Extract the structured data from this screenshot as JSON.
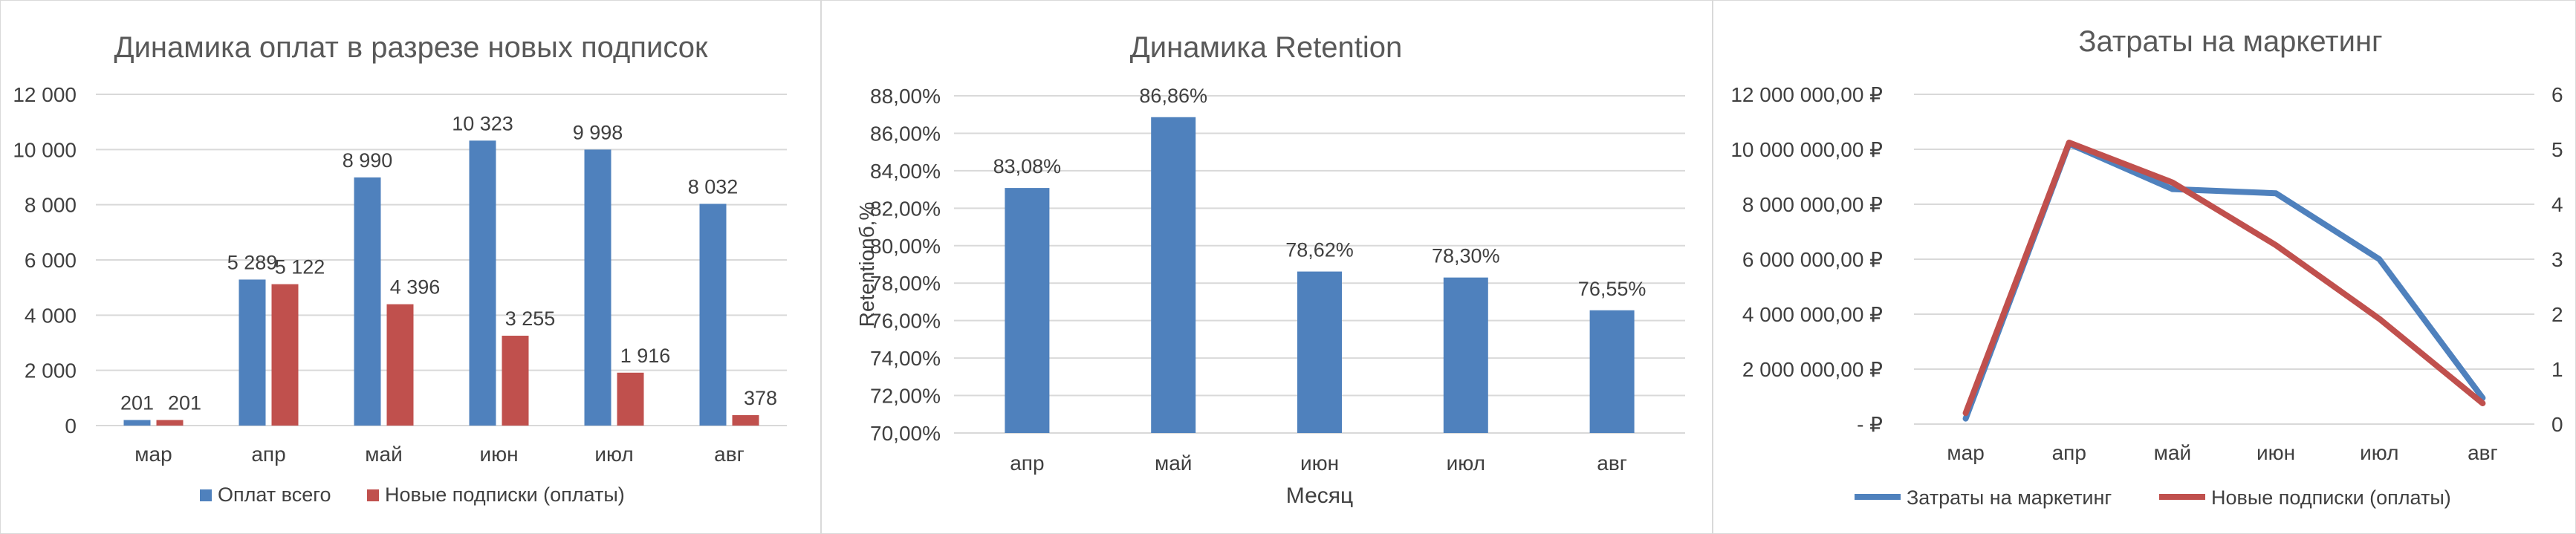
{
  "colors": {
    "blue": "#4f81bd",
    "red": "#c0504d",
    "grid": "#d9d9d9",
    "text": "#404040",
    "title": "#595959"
  },
  "charts": [
    {
      "id": "payments",
      "chart_data": {
        "type": "bar",
        "title": "Динамика оплат в разрезе новых подписок",
        "xlabel": "",
        "ylabel": "",
        "categories": [
          "мар",
          "апр",
          "май",
          "июн",
          "июл",
          "авг"
        ],
        "ylim": [
          0,
          12000
        ],
        "yticks": [
          0,
          2000,
          4000,
          6000,
          8000,
          10000,
          12000
        ],
        "yticklabels": [
          "0",
          "2 000",
          "4 000",
          "6 000",
          "8 000",
          "10 000",
          "12 000"
        ],
        "grid": true,
        "legend": "bottom",
        "series": [
          {
            "name": "Оплат всего",
            "color": "#4f81bd",
            "values": [
              201,
              5289,
              8990,
              10323,
              9998,
              8032
            ],
            "labels": [
              "201",
              "5 289",
              "8 990",
              "10 323",
              "9 998",
              "8 032"
            ]
          },
          {
            "name": "Новые подписки (оплаты)",
            "color": "#c0504d",
            "values": [
              201,
              5122,
              4396,
              3255,
              1916,
              378
            ],
            "labels": [
              "201",
              "5 122",
              "4 396",
              "3 255",
              "1 916",
              "378"
            ]
          }
        ]
      }
    },
    {
      "id": "retention",
      "chart_data": {
        "type": "bar",
        "title": "Динамика Retention",
        "xlabel": "Месяц",
        "ylabel": "Retentionб,%",
        "categories": [
          "апр",
          "май",
          "июн",
          "июл",
          "авг"
        ],
        "ylim": [
          70,
          88
        ],
        "yticks": [
          70,
          72,
          74,
          76,
          78,
          80,
          82,
          84,
          86,
          88
        ],
        "yticklabels": [
          "70,00%",
          "72,00%",
          "74,00%",
          "76,00%",
          "78,00%",
          "80,00%",
          "82,00%",
          "84,00%",
          "86,00%",
          "88,00%"
        ],
        "grid": true,
        "series": [
          {
            "name": "",
            "color": "#4f81bd",
            "values": [
              83.08,
              86.86,
              78.62,
              78.3,
              76.55
            ],
            "labels": [
              "83,08%",
              "86,86%",
              "78,62%",
              "78,30%",
              "76,55%"
            ]
          }
        ]
      }
    },
    {
      "id": "marketing",
      "chart_data": {
        "type": "line",
        "title": "Затраты на маркетинг",
        "xlabel": "",
        "ylabel": "",
        "categories": [
          "мар",
          "апр",
          "май",
          "июн",
          "июл",
          "авг"
        ],
        "ylim": [
          0,
          12000000
        ],
        "yticks": [
          0,
          2000000,
          4000000,
          6000000,
          8000000,
          10000000,
          12000000
        ],
        "yticklabels": [
          "-  ₽",
          "2 000 000,00 ₽",
          "4 000 000,00 ₽",
          "6 000 000,00 ₽",
          "8 000 000,00 ₽",
          "10 000 000,00 ₽",
          "12 000 000,00 ₽"
        ],
        "y2lim": [
          0,
          6000
        ],
        "y2ticks": [
          0,
          1000,
          2000,
          3000,
          4000,
          5000,
          6000
        ],
        "y2ticklabels": [
          "0",
          "1",
          "2",
          "3",
          "4",
          "5",
          "6"
        ],
        "grid": true,
        "legend": "bottom",
        "series": [
          {
            "name": "Затраты на маркетинг",
            "color": "#4f81bd",
            "axis": "left",
            "values": [
              200000,
              10200000,
              8550000,
              8400000,
              6000000,
              950000
            ]
          },
          {
            "name": "Новые подписки (оплаты)",
            "color": "#c0504d",
            "axis": "right",
            "values": [
              201,
              5122,
              4396,
              3255,
              1916,
              378
            ]
          }
        ]
      }
    }
  ]
}
